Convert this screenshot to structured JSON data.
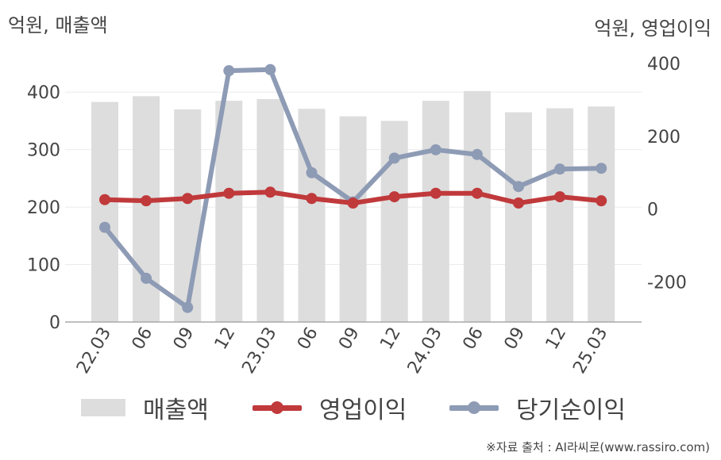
{
  "chart_data": {
    "type": "bar",
    "units": {
      "left": "억원, 매출액",
      "right": "억원, 영업이익"
    },
    "categories": [
      "22.03",
      "06",
      "09",
      "12",
      "23.03",
      "06",
      "09",
      "12",
      "24.03",
      "06",
      "09",
      "12",
      "25.03"
    ],
    "left_axis": {
      "ylim": [
        0,
        450
      ],
      "ticks": [
        "0",
        "100",
        "200",
        "300",
        "400"
      ]
    },
    "right_axis": {
      "ylim": [
        -310,
        400
      ],
      "ticks": [
        "-200",
        "0",
        "200",
        "400"
      ]
    },
    "series": [
      {
        "name": "매출액",
        "type": "bar",
        "axis": "left",
        "color": "#dddddd",
        "values": [
          383,
          393,
          370,
          385,
          388,
          371,
          358,
          350,
          385,
          402,
          365,
          372,
          375
        ]
      },
      {
        "name": "영업이익",
        "type": "line",
        "axis": "left",
        "color": "#c0393b",
        "values": [
          213,
          211,
          215,
          224,
          226,
          215,
          207,
          218,
          224,
          224,
          207,
          218,
          211
        ]
      },
      {
        "name": "당기순이익",
        "type": "line",
        "axis": "right",
        "color": "#8e9bb5",
        "values": [
          -50,
          -190,
          -270,
          380,
          383,
          100,
          20,
          140,
          163,
          150,
          62,
          110,
          112
        ]
      }
    ],
    "grid": true,
    "legend_position": "bottom"
  },
  "source": "※자료 출처 : AI라씨로(www.rassiro.com)"
}
